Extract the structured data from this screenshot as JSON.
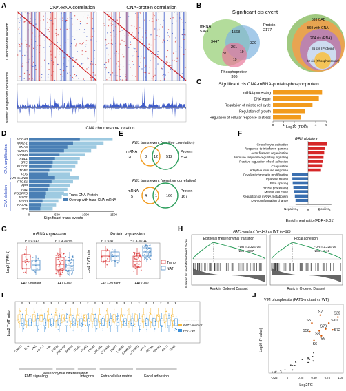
{
  "panels": {
    "A": {
      "letter": "A",
      "title_rna": "CNA-RNA correlation",
      "title_protein": "CNA-protein correlation",
      "ylabel_top": "Chromosome location",
      "ylabel_bottom": "Number of significant correlations",
      "xlabel": "CNA chromosome location"
    },
    "B": {
      "letter": "B",
      "title": "Significant cis event",
      "venn": {
        "mrna_label": "mRNA",
        "mrna_n": "5363",
        "protein_label": "Protein",
        "protein_n": "2177",
        "phospho_label": "Phosphoprotein",
        "phospho_n": "386",
        "r_3447": "3447",
        "r_1568": "1568",
        "r_329": "329",
        "r_261": "261",
        "r_87": "87",
        "r_19": "19",
        "r_19b": "19"
      },
      "nested": {
        "cad": "593 CAD",
        "c569": "569 with CNA",
        "c204": "204 cis (RNA)",
        "c85": "85 cis (Protein)",
        "c22": "22 cis (Phosphoprotein)"
      }
    },
    "C": {
      "letter": "C",
      "title": "Significant cis CNA-mRNA-protein-phosphoprotein",
      "xlabel": "-Log10 (FDR)",
      "terms": [
        "mRNA processing",
        "DNA repair",
        "Regulation of mitotic cell cycle",
        "Regulation of growth",
        "Regulation of cellular response to stress"
      ],
      "values": [
        4.6,
        4.3,
        3.7,
        3.0,
        2.6
      ],
      "ticks": [
        "0",
        "1",
        "2",
        "3",
        "4",
        "5"
      ]
    },
    "D": {
      "letter": "D",
      "group_amp": "CNA amplification",
      "group_del": "CNA deletion",
      "genes": [
        "NCOA3",
        "NKX2-1",
        "GNAS",
        "AURKA",
        "SRRM4",
        "RBL1",
        "SRC",
        "PLCG1",
        "TOP1",
        "FOS",
        "ARHGAP26",
        "PTGS1",
        "APP",
        "RB1",
        "PDGFRB",
        "NSD1",
        "MSH3",
        "RASA1",
        "APC"
      ],
      "xlabel": "Significant trans events",
      "legend_trans": "Trans CNA-Protein",
      "legend_overlap": "Overlap with trans CNA-mRNA",
      "ticks": [
        "0",
        "500",
        "1000",
        "1500"
      ]
    },
    "E": {
      "letter": "E",
      "pos_title_gene": "RB1",
      "pos_title": " trans event (positive correlation)",
      "pos_mrna": "mRNA",
      "pos_mrna_n": "20",
      "pos_protein": "Protein",
      "pos_protein_n": "524",
      "pos_r1": "8",
      "pos_r2": "12",
      "pos_r3": "512",
      "neg_title_gene": "RB1",
      "neg_title": " trans event (negative correlation)",
      "neg_mrna": "mRNA",
      "neg_mrna_n": "5",
      "neg_protein": "Protein",
      "neg_protein_n": "167",
      "neg_r1": "4",
      "neg_r2": "1",
      "neg_r3": "166"
    },
    "F": {
      "letter": "F",
      "title": "RB1 deletion",
      "terms": [
        "Granulocyte activation",
        "Response to interferon-gamma",
        "Actin filament organization",
        "Immune response-regulating signaling",
        "Positive regulation of cell adhesion",
        "Coagulation",
        "Adaptive immune response",
        "Covalent chromatin modification",
        "Organelle fission",
        "RNA splicing",
        "mRNA processing",
        "Meiotic cell cycle",
        "Regulation of mRNA metabolism",
        "DNA conformation change"
      ],
      "values": [
        5.2,
        4.8,
        4.5,
        4.3,
        4.2,
        3.9,
        3.6,
        -4.6,
        -4.4,
        -4.3,
        -4.1,
        -3.9,
        -3.7,
        -3.5
      ],
      "neg_label": "Negative",
      "pos_label": "Positive",
      "xlabel": "Enrichment ratio (FDR<0.01)",
      "ticks": [
        "3",
        "0",
        "3",
        "6"
      ]
    },
    "G": {
      "letter": "G",
      "title_mrna": "mRNA expression",
      "title_protein": "Protein expression",
      "ylabel_mrna": "Log2 (TPM+1)",
      "ylabel_protein": "Log2 TMT ratio",
      "p_mrna_1": "P = 0.017",
      "p_mrna_2": "P = 3.7E-04",
      "p_prot_1": "P = 0.47",
      "p_prot_2": "P = 3.2E-11",
      "x_mutant": "FAT1-mutant",
      "x_wt": "FAT1-WT",
      "legend_tumor": "Tumor",
      "legend_nat": "NAT"
    },
    "H": {
      "letter": "H",
      "title": "FAT1-mutant (n=14) vs WT (n=98)",
      "left_title": "Epithelial mesenchymal transition",
      "left_fdr": "FDR = 2.22E-16",
      "left_nes": "NES = 3.87",
      "right_title": "Focal adhesion",
      "right_fdr": "FDR = 2.22E-16",
      "right_nes": "NES = 2.19",
      "ylabel_es": "Enrichment Score",
      "ylabel_rank": "Ranked list metric",
      "xlabel": "Rank in Ordered Dataset"
    },
    "I": {
      "letter": "I",
      "ylabel": "Log2 TMT ratio",
      "genes": [
        "CDH11",
        "ELN",
        "FN1",
        "FSTL1",
        "VIM",
        "TGFBI",
        "PDGFRB",
        "SPARC",
        "ITGA5",
        "ITGB1",
        "ITGB5",
        "COL4A1",
        "COL4A2",
        "TIMP3",
        "LAMB2",
        "CAMK2D",
        "CTNND1",
        "MYL9",
        "ACTN1",
        "PDPK1",
        "RAC1",
        "TLN2"
      ],
      "groups": [
        "EMT signaling",
        "Mesenchymal differentiation",
        "Integrins",
        "Extracellular matrix",
        "Focal adhesion"
      ],
      "legend_mut": "FAT1-mutant",
      "legend_wt": "FAT1-WT"
    },
    "J": {
      "letter": "J",
      "title": "VIM phosphosits (FAT1-mutant vs WT)",
      "xlabel": "Log2FC",
      "ylabel": "-Log10 (P value)",
      "sites": [
        "S7",
        "S5",
        "S10",
        "S39",
        "S56",
        "S8",
        "S73",
        "S72",
        "S9",
        "S6"
      ],
      "xticks": [
        "-0.25",
        "0",
        "0.25",
        "0.50",
        "0.75",
        "1.00"
      ]
    }
  },
  "colors": {
    "red": "#d62728",
    "blue": "#1f3fbf",
    "orange": "#f29b1d",
    "lightblue": "#9ecae1",
    "steel": "#4a7fb5",
    "venn_green": "#9ad07a",
    "venn_pink": "#e8789a",
    "venn_blue": "#7fb3e0"
  }
}
